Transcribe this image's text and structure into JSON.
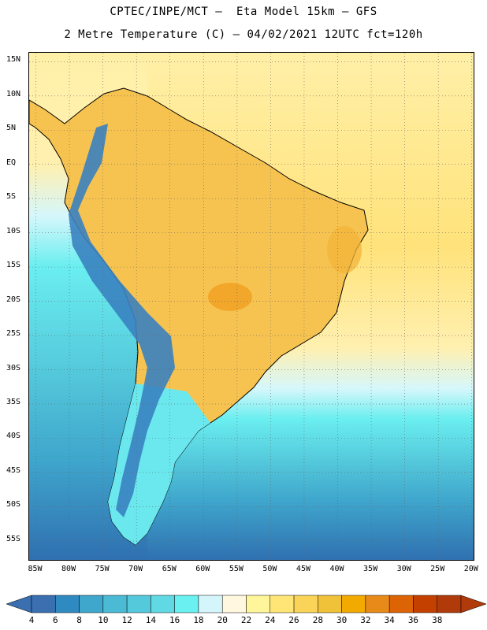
{
  "header": {
    "title_line1": "CPTEC/INPE/MCT –  Eta Model 15km – GFS",
    "title_line2": "2 Metre Temperature (C) – 04/02/2021 12UTC fct=120h"
  },
  "map": {
    "lat_labels": [
      "15N",
      "10N",
      "5N",
      "EQ",
      "5S",
      "10S",
      "15S",
      "20S",
      "25S",
      "30S",
      "35S",
      "40S",
      "45S",
      "50S",
      "55S"
    ],
    "lon_labels": [
      "85W",
      "80W",
      "75W",
      "70W",
      "65W",
      "60W",
      "55W",
      "50W",
      "45W",
      "40W",
      "35W",
      "30W",
      "25W",
      "20W"
    ],
    "grid": true,
    "extent": {
      "lon_min": -86,
      "lon_max": -19.5,
      "lat_min": -58,
      "lat_max": 16.3
    }
  },
  "colorbar": {
    "levels": [
      "4",
      "6",
      "8",
      "10",
      "12",
      "14",
      "16",
      "18",
      "20",
      "22",
      "24",
      "26",
      "28",
      "30",
      "32",
      "34",
      "36",
      "38"
    ],
    "colors": [
      "#3a6fb0",
      "#2f8ac1",
      "#3fa6cc",
      "#4bbad4",
      "#55c9dc",
      "#60d9e4",
      "#6af0f0",
      "#d4f6fa",
      "#fff7e0",
      "#fff59a",
      "#ffe575",
      "#f9d458",
      "#f0c23a",
      "#f2aa00",
      "#e88a1a",
      "#dc6404",
      "#c44000",
      "#b03a0a"
    ],
    "under_color": "#3a6fb0",
    "over_color": "#b03a0a"
  }
}
